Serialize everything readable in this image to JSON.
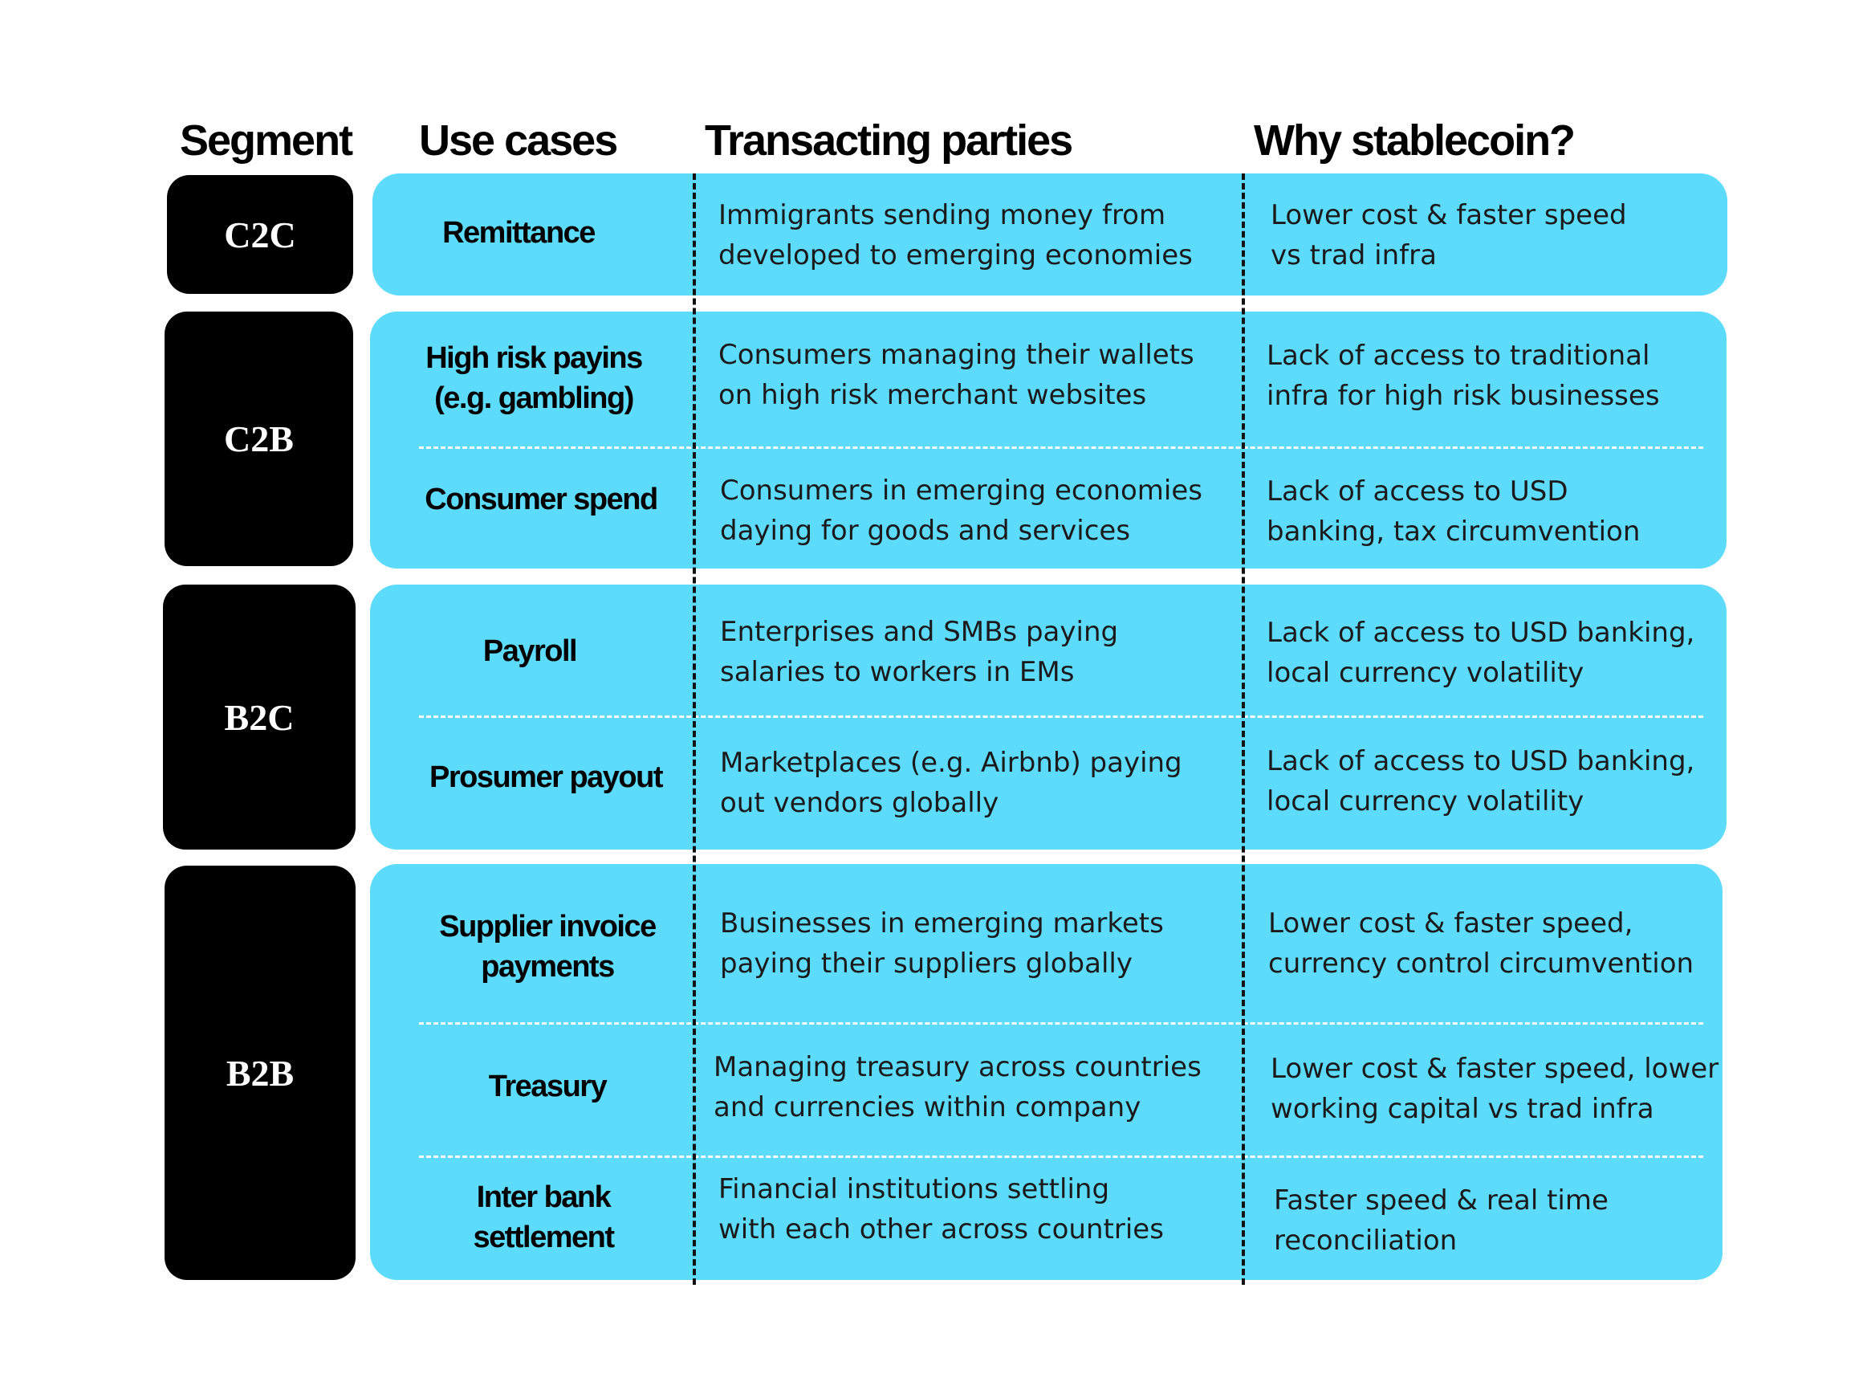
{
  "headers": {
    "segment": "Segment",
    "use_cases": "Use cases",
    "transacting_parties": "Transacting parties",
    "why_stablecoin": "Why stablecoin?"
  },
  "segments": [
    "C2C",
    "C2B",
    "B2C",
    "B2B"
  ],
  "rows": [
    {
      "use_case": [
        "Remittance"
      ],
      "parties": [
        "Immigrants sending money from",
        "developed to emerging economies"
      ],
      "why": [
        "Lower cost & faster speed",
        "vs trad infra"
      ]
    },
    {
      "use_case": [
        "High risk payins",
        "(e.g. gambling)"
      ],
      "parties": [
        "Consumers managing their wallets",
        "on high risk merchant websites"
      ],
      "why": [
        "Lack of access to traditional",
        "infra for high risk businesses"
      ]
    },
    {
      "use_case": [
        "Consumer spend"
      ],
      "parties": [
        "Consumers in emerging economies",
        "daying for goods and services"
      ],
      "why": [
        "Lack of access to USD",
        "banking, tax circumvention"
      ]
    },
    {
      "use_case": [
        "Payroll"
      ],
      "parties": [
        "Enterprises and SMBs paying",
        "salaries to workers in EMs"
      ],
      "why": [
        "Lack of access to USD banking,",
        "local currency volatility"
      ]
    },
    {
      "use_case": [
        "Prosumer payout"
      ],
      "parties": [
        "Marketplaces (e.g. Airbnb) paying",
        "out vendors globally"
      ],
      "why": [
        "Lack of access to USD banking,",
        "local currency volatility"
      ]
    },
    {
      "use_case": [
        "Supplier invoice",
        "payments"
      ],
      "parties": [
        "Businesses in emerging markets",
        "paying their suppliers globally"
      ],
      "why": [
        "Lower cost & faster speed,",
        "currency control circumvention"
      ]
    },
    {
      "use_case": [
        "Treasury"
      ],
      "parties": [
        "Managing treasury across countries",
        "and currencies within company"
      ],
      "why": [
        "Lower cost & faster speed, lower",
        "working capital vs trad infra"
      ]
    },
    {
      "use_case": [
        "Inter bank",
        "settlement"
      ],
      "parties": [
        "Financial institutions settling",
        "with each other across countries"
      ],
      "why": [
        "Faster speed & real time",
        "reconciliation"
      ]
    }
  ],
  "colors": {
    "group_fill": "#5ddbfb",
    "segment_fill": "#000000",
    "divider": "#111111"
  }
}
